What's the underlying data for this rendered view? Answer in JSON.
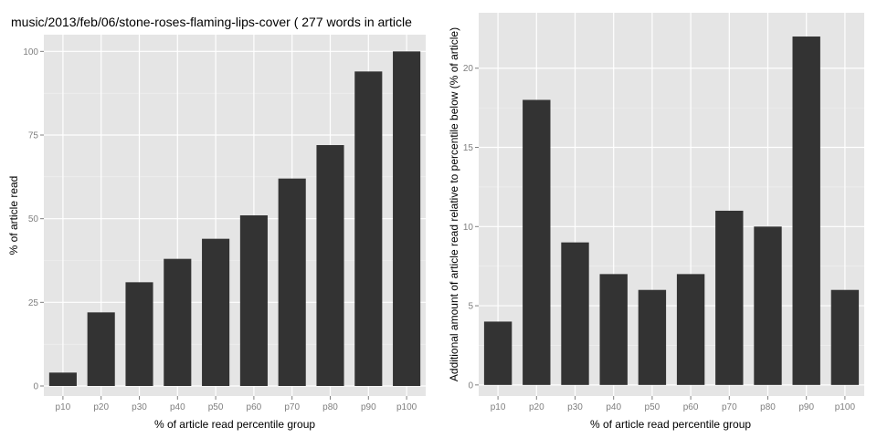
{
  "colors": {
    "panel": "#e5e5e5",
    "bar": "#333333",
    "grid": "#ffffff",
    "tick_text": "#7f7f7f"
  },
  "chart_data": [
    {
      "type": "bar",
      "title": "music/2013/feb/06/stone-roses-flaming-lips-cover ( 277 words in article",
      "xlabel": "% of article read percentile group",
      "ylabel": "% of article read",
      "categories": [
        "p10",
        "p20",
        "p30",
        "p40",
        "p50",
        "p60",
        "p70",
        "p80",
        "p90",
        "p100"
      ],
      "values": [
        4,
        22,
        31,
        38,
        44,
        51,
        62,
        72,
        94,
        100
      ],
      "ylim": [
        -3,
        105
      ],
      "yticks": [
        0,
        25,
        50,
        75,
        100
      ],
      "ytick_labels": [
        "0",
        "25",
        "50",
        "75",
        "100"
      ],
      "grid": true
    },
    {
      "type": "bar",
      "title": "",
      "xlabel": "% of article read percentile group",
      "ylabel": "Additional amount of article read relative to percentile below (% of article)",
      "categories": [
        "p10",
        "p20",
        "p30",
        "p40",
        "p50",
        "p60",
        "p70",
        "p80",
        "p90",
        "p100"
      ],
      "values": [
        4,
        18,
        9,
        7,
        6,
        7,
        11,
        10,
        22,
        6
      ],
      "ylim": [
        -0.7,
        23.5
      ],
      "yticks": [
        0,
        5,
        10,
        15,
        20
      ],
      "ytick_labels": [
        "0",
        "5",
        "10",
        "15",
        "20"
      ],
      "grid": true
    }
  ]
}
